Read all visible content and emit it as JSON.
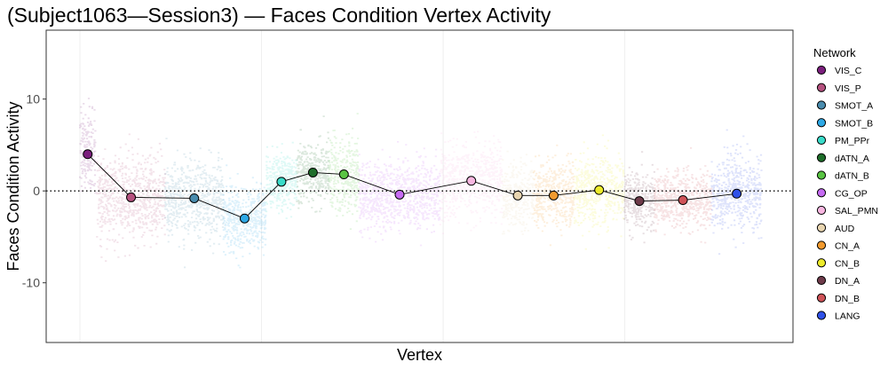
{
  "chart_data": {
    "type": "scatter",
    "title": "(Subject1063—Session3) — Faces Condition Vertex Activity",
    "xlabel": "Vertex",
    "ylabel": "Faces Condition Activity",
    "ylim": [
      -16.5,
      17.5
    ],
    "yticks": [
      10,
      0,
      -10
    ],
    "ytick_labels": [
      "10",
      "0",
      "-10"
    ],
    "reference_line": 0,
    "legend_title": "Network",
    "legend_position": "right",
    "grid": true,
    "networks": [
      {
        "name": "VIS_C",
        "color": "#7B1F7D",
        "mean": 4.0,
        "cloud_mean": 4.5,
        "cloud_sd": 2.2,
        "x_range": [
          0.0,
          0.032
        ]
      },
      {
        "name": "VIS_P",
        "color": "#B5517F",
        "mean": -0.7,
        "cloud_mean": -0.7,
        "cloud_sd": 2.4,
        "x_range": [
          0.035,
          0.176
        ]
      },
      {
        "name": "SMOT_A",
        "color": "#4A8CAE",
        "mean": -0.8,
        "cloud_mean": -0.8,
        "cloud_sd": 2.0,
        "x_range": [
          0.176,
          0.296
        ]
      },
      {
        "name": "SMOT_B",
        "color": "#2EA9E6",
        "mean": -3.0,
        "cloud_mean": -3.0,
        "cloud_sd": 1.7,
        "x_range": [
          0.296,
          0.384
        ]
      },
      {
        "name": "PM_PPr",
        "color": "#39DBC9",
        "mean": 1.0,
        "cloud_mean": 1.0,
        "cloud_sd": 1.5,
        "x_range": [
          0.384,
          0.448
        ]
      },
      {
        "name": "dATN_A",
        "color": "#1E6E2A",
        "mean": 2.0,
        "cloud_mean": 2.0,
        "cloud_sd": 1.6,
        "x_range": [
          0.448,
          0.514
        ]
      },
      {
        "name": "dATN_B",
        "color": "#59C443",
        "mean": 1.8,
        "cloud_mean": 1.8,
        "cloud_sd": 2.0,
        "x_range": [
          0.514,
          0.576
        ]
      },
      {
        "name": "CG_OP",
        "color": "#C66BF3",
        "mean": -0.4,
        "cloud_mean": -0.4,
        "cloud_sd": 1.8,
        "x_range": [
          0.576,
          0.744
        ]
      },
      {
        "name": "SAL_PMN",
        "color": "#F7B6E0",
        "mean": 1.1,
        "cloud_mean": 1.1,
        "cloud_sd": 1.9,
        "x_range": [
          0.744,
          0.872
        ]
      },
      {
        "name": "AUD",
        "color": "#E8D5B0",
        "mean": -0.5,
        "cloud_mean": -0.5,
        "cloud_sd": 1.8,
        "x_range": [
          0.872,
          0.936
        ]
      },
      {
        "name": "CN_A",
        "color": "#F29A2E",
        "mean": -0.5,
        "cloud_mean": -0.5,
        "cloud_sd": 1.8,
        "x_range": [
          0.936,
          1.02
        ]
      },
      {
        "name": "CN_B",
        "color": "#EDEB2B",
        "mean": 0.1,
        "cloud_mean": 0.1,
        "cloud_sd": 1.9,
        "x_range": [
          1.02,
          1.124
        ]
      },
      {
        "name": "DN_A",
        "color": "#6E3B4A",
        "mean": -1.1,
        "cloud_mean": -1.1,
        "cloud_sd": 1.5,
        "x_range": [
          1.124,
          1.186
        ]
      },
      {
        "name": "DN_B",
        "color": "#CF5358",
        "mean": -1.0,
        "cloud_mean": -1.0,
        "cloud_sd": 1.5,
        "x_range": [
          1.186,
          1.304
        ]
      },
      {
        "name": "LANG",
        "color": "#2F51E8",
        "mean": -0.3,
        "cloud_mean": -0.3,
        "cloud_sd": 2.1,
        "x_range": [
          1.304,
          1.408
        ]
      }
    ]
  }
}
